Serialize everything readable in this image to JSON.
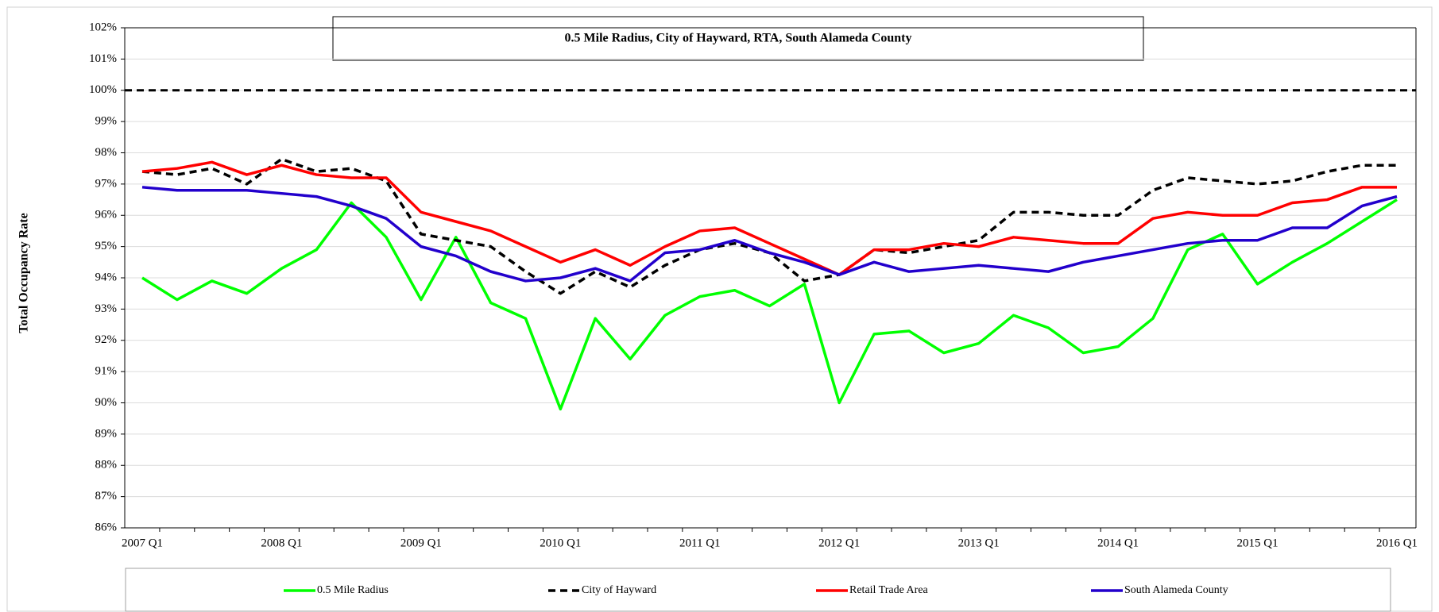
{
  "chart_data": {
    "type": "line",
    "title": "0.5 Mile Radius, City of Hayward, RTA, South Alameda County",
    "y_label": "Total Occupancy Rate",
    "categories": [
      "2007 Q1",
      null,
      null,
      null,
      "2008 Q1",
      null,
      null,
      null,
      "2009 Q1",
      null,
      null,
      null,
      "2010 Q1",
      null,
      null,
      null,
      "2011 Q1",
      null,
      null,
      null,
      "2012 Q1",
      null,
      null,
      null,
      "2013 Q1",
      null,
      null,
      null,
      "2014 Q1",
      null,
      null,
      null,
      "2015 Q1",
      null,
      null,
      null,
      "2016 Q1"
    ],
    "series": [
      {
        "name": "0.5 Mile Radius",
        "color": "#00ff00",
        "dash": false,
        "values": [
          94.0,
          93.3,
          93.9,
          93.5,
          94.3,
          94.9,
          96.4,
          95.3,
          93.3,
          95.3,
          93.2,
          92.7,
          89.8,
          92.7,
          91.4,
          92.8,
          93.4,
          93.6,
          93.1,
          93.8,
          90.0,
          92.2,
          92.3,
          91.6,
          91.9,
          92.8,
          92.4,
          91.6,
          91.8,
          92.7,
          94.9,
          95.4,
          93.8,
          94.5,
          95.1,
          95.8,
          96.5
        ]
      },
      {
        "name": "City of Hayward",
        "color": "#000000",
        "dash": true,
        "values": [
          97.4,
          97.3,
          97.5,
          97.0,
          97.8,
          97.4,
          97.5,
          97.1,
          95.4,
          95.2,
          95.0,
          94.2,
          93.5,
          94.2,
          93.7,
          94.4,
          94.9,
          95.1,
          94.8,
          93.9,
          94.1,
          94.9,
          94.8,
          95.0,
          95.2,
          96.1,
          96.1,
          96.0,
          96.0,
          96.8,
          97.2,
          97.1,
          97.0,
          97.1,
          97.4,
          97.6,
          97.6
        ]
      },
      {
        "name": "Retail Trade Area",
        "color": "#ff0000",
        "dash": false,
        "values": [
          97.4,
          97.5,
          97.7,
          97.3,
          97.6,
          97.3,
          97.2,
          97.2,
          96.1,
          95.8,
          95.5,
          95.0,
          94.5,
          94.9,
          94.4,
          95.0,
          95.5,
          95.6,
          95.1,
          94.6,
          94.1,
          94.9,
          94.9,
          95.1,
          95.0,
          95.3,
          95.2,
          95.1,
          95.1,
          95.9,
          96.1,
          96.0,
          96.0,
          96.4,
          96.5,
          96.9,
          96.9
        ]
      },
      {
        "name": "South Alameda County",
        "color": "#2200cc",
        "dash": false,
        "values": [
          96.9,
          96.8,
          96.8,
          96.8,
          96.7,
          96.6,
          96.3,
          95.9,
          95.0,
          94.7,
          94.2,
          93.9,
          94.0,
          94.3,
          93.9,
          94.8,
          94.9,
          95.2,
          94.8,
          94.5,
          94.1,
          94.5,
          94.2,
          94.3,
          94.4,
          94.3,
          94.2,
          94.5,
          94.7,
          94.9,
          95.1,
          95.2,
          95.2,
          95.6,
          95.6,
          96.3,
          96.6
        ]
      }
    ],
    "reference_line": {
      "value": 100,
      "color": "#000000",
      "dash": true
    },
    "ylim": [
      86,
      102
    ],
    "yticks": [
      {
        "value": 86,
        "label": "86%"
      },
      {
        "value": 87,
        "label": "87%"
      },
      {
        "value": 88,
        "label": "88%"
      },
      {
        "value": 89,
        "label": "89%"
      },
      {
        "value": 90,
        "label": "90%"
      },
      {
        "value": 91,
        "label": "91%"
      },
      {
        "value": 92,
        "label": "92%"
      },
      {
        "value": 93,
        "label": "93%"
      },
      {
        "value": 94,
        "label": "94%"
      },
      {
        "value": 95,
        "label": "95%"
      },
      {
        "value": 96,
        "label": "96%"
      },
      {
        "value": 97,
        "label": "97%"
      },
      {
        "value": 98,
        "label": "98%"
      },
      {
        "value": 99,
        "label": "99%"
      },
      {
        "value": 100,
        "label": "100%"
      },
      {
        "value": 101,
        "label": "101%"
      },
      {
        "value": 102,
        "label": "102%"
      }
    ],
    "grid": true,
    "legend": "bottom"
  }
}
